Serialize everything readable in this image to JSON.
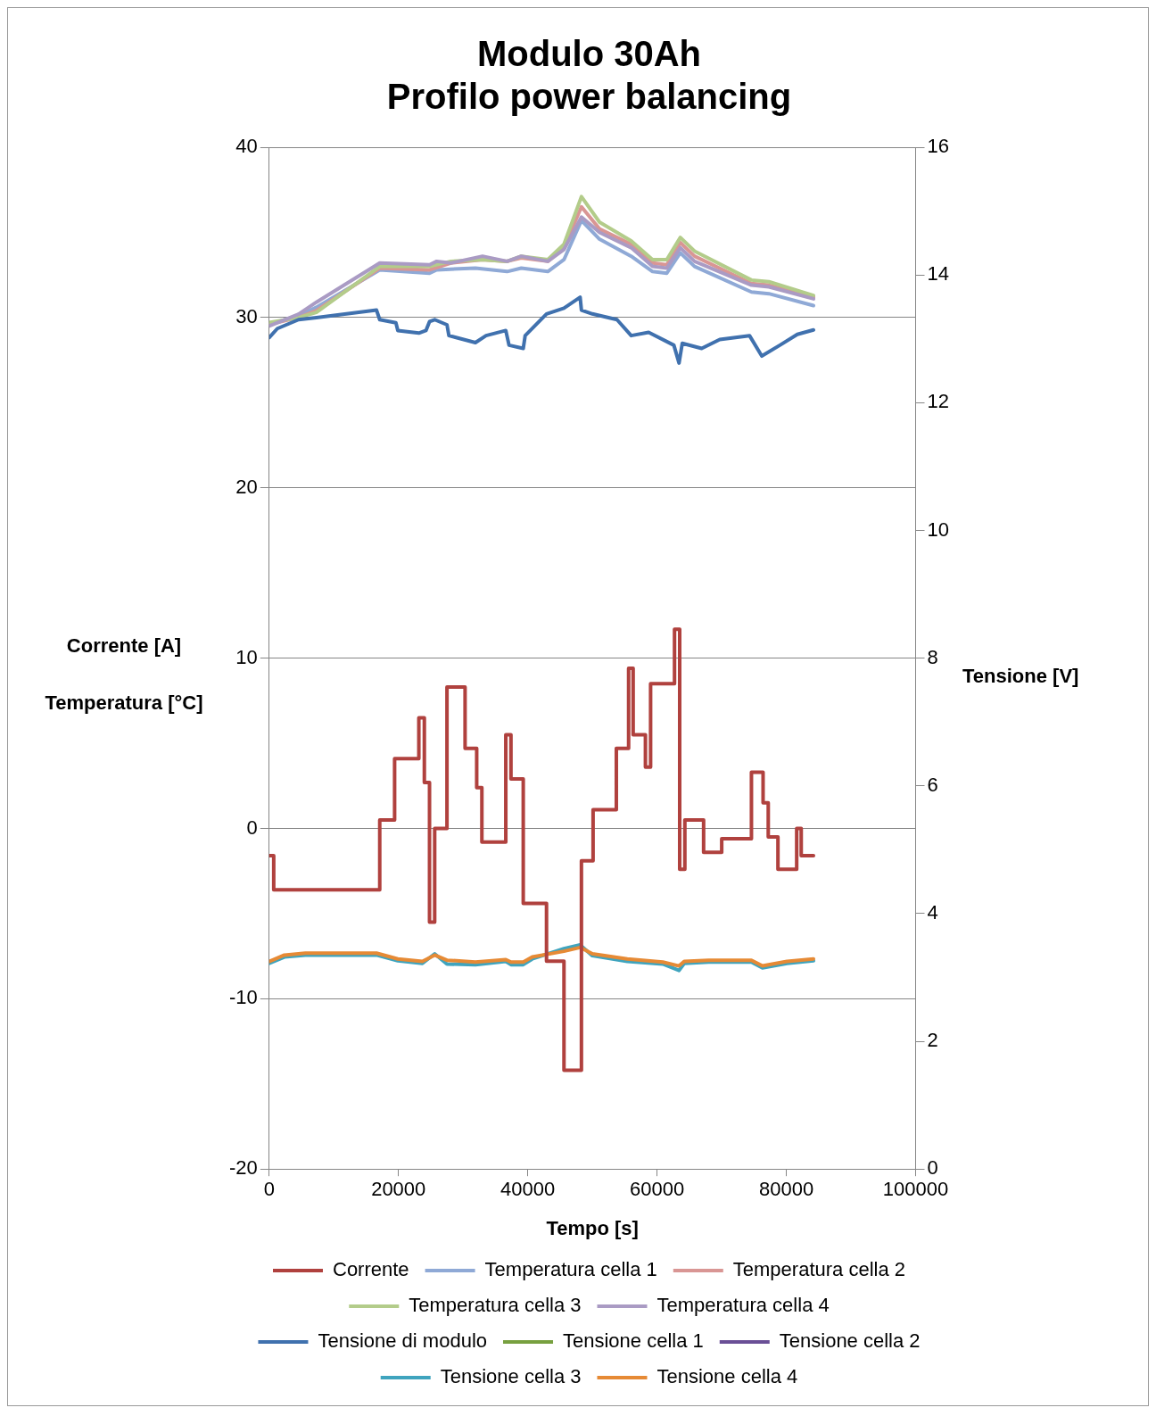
{
  "chart_data": {
    "type": "line",
    "title": "Modulo 30Ah\nProfilo power balancing",
    "xlabel": "Tempo [s]",
    "ylabel": "Corrente [A]\nTemperatura [°C]",
    "y2label": "Tensione [V]",
    "xlim": [
      0,
      100000
    ],
    "xticks": [
      0,
      20000,
      40000,
      60000,
      80000,
      100000
    ],
    "ylim": [
      -20,
      40
    ],
    "yticks": [
      -20,
      -10,
      0,
      10,
      20,
      30,
      40
    ],
    "y2lim": [
      0,
      16
    ],
    "y2ticks": [
      0,
      2,
      4,
      6,
      8,
      10,
      12,
      14,
      16
    ],
    "grid": "y",
    "legend": "bottom",
    "marker": "none",
    "line_style": "solid",
    "series": [
      {
        "name": "Corrente",
        "type": "step",
        "color": "#b0413e",
        "x": [
          0,
          700,
          17100,
          19400,
          23150,
          24000,
          24800,
          25600,
          27500,
          30300,
          32100,
          32900,
          36600,
          37400,
          39300,
          42900,
          45600,
          48300,
          50100,
          53700,
          55600,
          56300,
          58200,
          59000,
          62700,
          63500,
          64300,
          67200,
          70000,
          74600,
          76400,
          77200,
          78700,
          81600,
          82300,
          84200
        ],
        "values": [
          -1.6,
          -3.6,
          0.5,
          4.1,
          6.5,
          2.7,
          -5.5,
          0,
          8.3,
          4.7,
          2.4,
          -0.8,
          5.5,
          2.9,
          -4.4,
          -7.8,
          -14.2,
          -1.9,
          1.1,
          4.7,
          9.4,
          5.5,
          3.6,
          8.5,
          11.7,
          -2.4,
          0.5,
          -1.4,
          -0.6,
          3.3,
          1.5,
          -0.5,
          -2.4,
          0,
          -1.6,
          -1.6
        ]
      },
      {
        "name": "Temperatura cella 1",
        "type": "line",
        "color": "#8fa9d6",
        "x": [
          0,
          4540,
          7300,
          17100,
          24800,
          25900,
          31900,
          36800,
          39000,
          43100,
          45600,
          48300,
          51100,
          56000,
          59300,
          61500,
          63600,
          65800,
          74600,
          77300,
          84200
        ],
        "values": [
          29.6,
          30.1,
          30.6,
          32.8,
          32.6,
          32.8,
          32.9,
          32.7,
          32.9,
          32.7,
          33.4,
          35.7,
          34.6,
          33.6,
          32.7,
          32.6,
          33.8,
          33.0,
          31.5,
          31.4,
          30.7
        ]
      },
      {
        "name": "Temperatura cella 2",
        "type": "line",
        "color": "#d99694",
        "x": [
          0,
          4540,
          7300,
          17100,
          24800,
          28100,
          33000,
          36800,
          39000,
          43100,
          45600,
          48300,
          51100,
          56000,
          59300,
          61500,
          63600,
          65800,
          74600,
          77300,
          84200
        ],
        "values": [
          29.6,
          30.0,
          30.4,
          32.9,
          32.8,
          33.2,
          33.4,
          33.3,
          33.5,
          33.3,
          34.1,
          36.5,
          35.2,
          34.3,
          33.2,
          33.1,
          34.4,
          33.6,
          32.0,
          31.9,
          31.2
        ]
      },
      {
        "name": "Temperatura cella 3",
        "type": "line",
        "color": "#b3cc8a",
        "x": [
          0,
          4540,
          7300,
          17100,
          24800,
          28100,
          33000,
          36800,
          39000,
          43100,
          45600,
          48300,
          51100,
          56000,
          59300,
          61500,
          63600,
          65800,
          74600,
          77300,
          84200
        ],
        "values": [
          29.7,
          30.0,
          30.3,
          33.0,
          33.0,
          33.3,
          33.4,
          33.3,
          33.6,
          33.4,
          34.3,
          37.1,
          35.6,
          34.5,
          33.4,
          33.4,
          34.7,
          33.9,
          32.2,
          32.1,
          31.3
        ]
      },
      {
        "name": "Temperatura cella 4",
        "type": "line",
        "color": "#aa9bc4",
        "x": [
          0,
          4540,
          7300,
          17100,
          24800,
          25900,
          28100,
          33000,
          36800,
          39000,
          43100,
          45600,
          48300,
          51100,
          56000,
          59300,
          61500,
          63600,
          65800,
          74600,
          77300,
          84200
        ],
        "values": [
          29.5,
          30.2,
          30.9,
          33.2,
          33.1,
          33.3,
          33.2,
          33.6,
          33.3,
          33.6,
          33.3,
          34.0,
          35.9,
          35.0,
          34.1,
          33.0,
          32.9,
          34.1,
          33.3,
          31.9,
          31.8,
          31.1
        ]
      },
      {
        "name": "Tensione di modulo",
        "type": "line",
        "axis": "y2",
        "color": "#4071ae",
        "x": [
          0,
          1260,
          4540,
          7300,
          16600,
          17100,
          19600,
          19900,
          23150,
          24250,
          24800,
          25600,
          27500,
          27800,
          31900,
          33550,
          36600,
          37100,
          39300,
          39600,
          42900,
          45600,
          48100,
          48300,
          50000,
          53800,
          56000,
          58700,
          62600,
          63400,
          63900,
          66900,
          69700,
          74300,
          76200,
          79000,
          81700,
          84200
        ],
        "values": [
          13.02,
          13.16,
          13.3,
          13.33,
          13.45,
          13.3,
          13.25,
          13.13,
          13.09,
          13.13,
          13.27,
          13.3,
          13.22,
          13.05,
          12.94,
          13.05,
          13.13,
          12.9,
          12.85,
          13.05,
          13.39,
          13.48,
          13.65,
          13.45,
          13.39,
          13.3,
          13.05,
          13.1,
          12.9,
          12.62,
          12.93,
          12.85,
          12.99,
          13.05,
          12.73,
          12.9,
          13.07,
          13.14
        ]
      },
      {
        "name": "Tensione cella 1",
        "type": "line",
        "axis": "y2",
        "color": "#77a03f"
      },
      {
        "name": "Tensione cella 2",
        "type": "line",
        "axis": "y2",
        "color": "#6a4f96"
      },
      {
        "name": "Tensione cella 3",
        "type": "line",
        "axis": "y2",
        "color": "#3fa4be",
        "x": [
          0,
          2350,
          5600,
          16600,
          19900,
          23700,
          25600,
          27500,
          31900,
          36600,
          37400,
          39300,
          40700,
          45600,
          48100,
          50000,
          55400,
          60900,
          63400,
          64200,
          68000,
          74600,
          76300,
          80100,
          84200
        ],
        "values": [
          3.22,
          3.32,
          3.35,
          3.35,
          3.26,
          3.22,
          3.37,
          3.21,
          3.2,
          3.25,
          3.2,
          3.2,
          3.29,
          3.45,
          3.51,
          3.34,
          3.25,
          3.21,
          3.11,
          3.22,
          3.24,
          3.24,
          3.15,
          3.22,
          3.26
        ]
      },
      {
        "name": "Tensione cella 4",
        "type": "line",
        "axis": "y2",
        "color": "#e68a35",
        "x": [
          0,
          2350,
          5600,
          16600,
          19900,
          23700,
          25600,
          27500,
          31900,
          36600,
          37400,
          39300,
          40700,
          45600,
          48100,
          50000,
          55400,
          60900,
          63400,
          64200,
          68000,
          74600,
          76300,
          80100,
          84200
        ],
        "values": [
          3.25,
          3.35,
          3.38,
          3.38,
          3.29,
          3.25,
          3.35,
          3.27,
          3.24,
          3.28,
          3.24,
          3.24,
          3.32,
          3.41,
          3.47,
          3.37,
          3.29,
          3.24,
          3.18,
          3.25,
          3.27,
          3.27,
          3.18,
          3.25,
          3.29
        ]
      }
    ]
  }
}
